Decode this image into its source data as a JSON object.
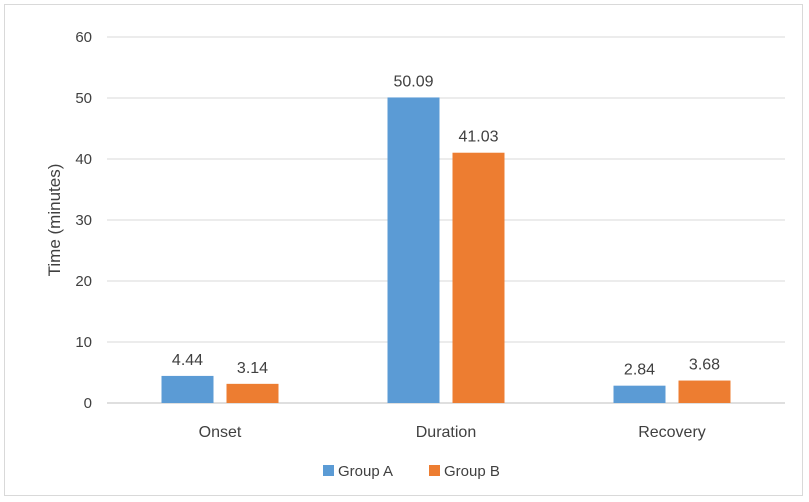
{
  "chart_data": {
    "type": "bar",
    "title": "",
    "xlabel": "",
    "ylabel": "Time (minutes)",
    "ylim": [
      0,
      60
    ],
    "yticks": [
      0,
      10,
      20,
      30,
      40,
      50,
      60
    ],
    "categories": [
      "Onset",
      "Duration",
      "Recovery"
    ],
    "series": [
      {
        "name": "Group A",
        "color": "#5B9BD5",
        "values": [
          4.44,
          50.09,
          2.84
        ],
        "labels": [
          "4.44",
          "50.09",
          "2.84"
        ]
      },
      {
        "name": "Group B",
        "color": "#ED7D31",
        "values": [
          3.14,
          41.03,
          3.68
        ],
        "labels": [
          "3.14",
          "41.03",
          "3.68"
        ]
      }
    ],
    "grid": true,
    "legend": "bottom-center"
  }
}
